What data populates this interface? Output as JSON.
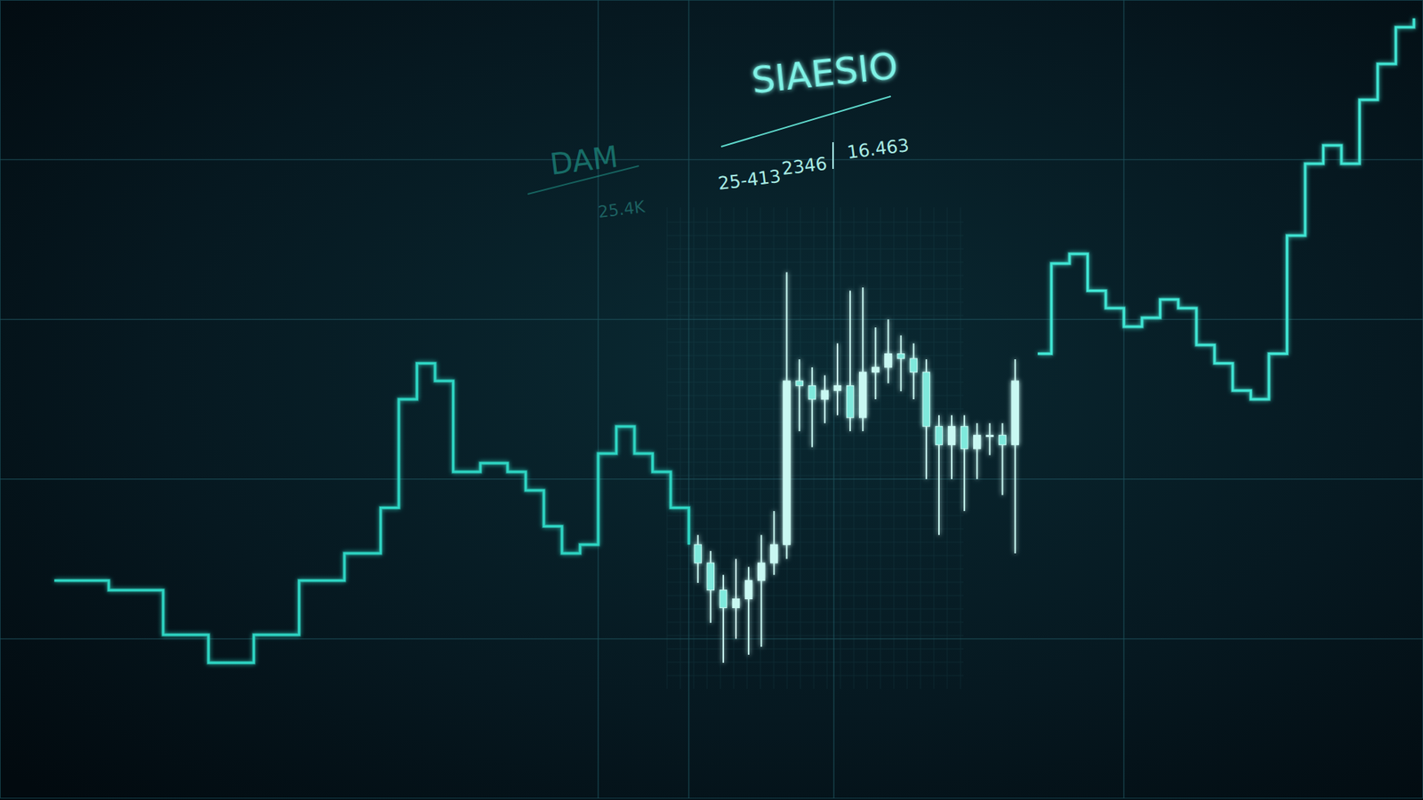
{
  "chart_data": {
    "type": "candlestick",
    "title": "SIAESIO",
    "annotations": [
      "DAM",
      "25-413",
      "2346",
      "16.463",
      "25.4K"
    ],
    "xlim": [
      0,
      157
    ],
    "xticks": [
      66,
      76,
      92,
      124
    ],
    "ylim": [
      0,
      100
    ],
    "yticks": [
      20,
      40,
      60,
      80
    ],
    "grid": true,
    "tick_labels": false,
    "series": [
      {
        "type": "line",
        "line_style": "step",
        "color": "#2fd6c4",
        "x": [
          6,
          12,
          18,
          23,
          28,
          33,
          38,
          42,
          44,
          46,
          48,
          50,
          53,
          56,
          58,
          60,
          62,
          64,
          66,
          68,
          70,
          72,
          74,
          76
        ],
        "values": [
          27.3,
          26.1,
          20.5,
          17,
          20.5,
          27.3,
          30.7,
          36.4,
          50,
          54.5,
          52.3,
          40.9,
          42,
          40.9,
          38.6,
          34.1,
          30.7,
          31.8,
          43.2,
          46.6,
          43.2,
          40.9,
          36.4,
          31.8
        ]
      },
      {
        "type": "candlestick",
        "color": "#c9f8f2",
        "x": [
          77,
          78.4,
          79.8,
          81.2,
          82.6,
          84,
          85.4,
          86.8,
          88.2,
          89.6,
          91,
          92.4,
          93.8,
          95.2,
          96.6,
          98,
          99.4,
          100.8,
          102.2,
          103.6,
          105,
          106.4,
          107.8,
          109.2,
          110.6,
          112
        ],
        "open": [
          31.8,
          29.5,
          26.1,
          23.9,
          25,
          27.3,
          29.5,
          31.8,
          52.3,
          51.7,
          50,
          51.1,
          51.7,
          47.7,
          53.4,
          54,
          55.7,
          55.1,
          53.4,
          46.6,
          44.3,
          46.6,
          43.8,
          45.5,
          45.5,
          44.3
        ],
        "high": [
          33,
          31,
          28,
          30,
          29,
          33,
          36,
          65.9,
          55,
          54,
          53,
          57,
          63.6,
          64,
          59,
          60,
          58,
          57,
          55,
          48,
          48,
          48,
          47,
          47,
          47,
          55
        ],
        "low": [
          27,
          22,
          17,
          20,
          18,
          19,
          28,
          30,
          46,
          44,
          47,
          48,
          46,
          46,
          50,
          52,
          51,
          50,
          40,
          33,
          40,
          36,
          40,
          43,
          38,
          30.7
        ],
        "close": [
          29.5,
          26.1,
          23.9,
          25,
          27.3,
          29.5,
          31.8,
          52.3,
          51.7,
          50,
          51.1,
          51.7,
          47.7,
          53.4,
          54,
          55.7,
          55.1,
          53.4,
          46.6,
          44.3,
          46.6,
          43.8,
          45.5,
          45.5,
          44.3,
          52.3
        ]
      },
      {
        "type": "line",
        "line_style": "step",
        "color": "#3fe6d4",
        "x": [
          114.5,
          116,
          118,
          120,
          122,
          124,
          126,
          128,
          130,
          132,
          134,
          136,
          138,
          140,
          142,
          144,
          146,
          148,
          150,
          152,
          154,
          156
        ],
        "values": [
          55.7,
          67,
          68.2,
          63.6,
          61.4,
          59.1,
          60.2,
          62.5,
          61.4,
          56.8,
          54.5,
          51.1,
          50,
          55.7,
          70.5,
          79.5,
          81.8,
          79.5,
          87.5,
          92,
          96.6,
          97.7
        ]
      }
    ]
  }
}
